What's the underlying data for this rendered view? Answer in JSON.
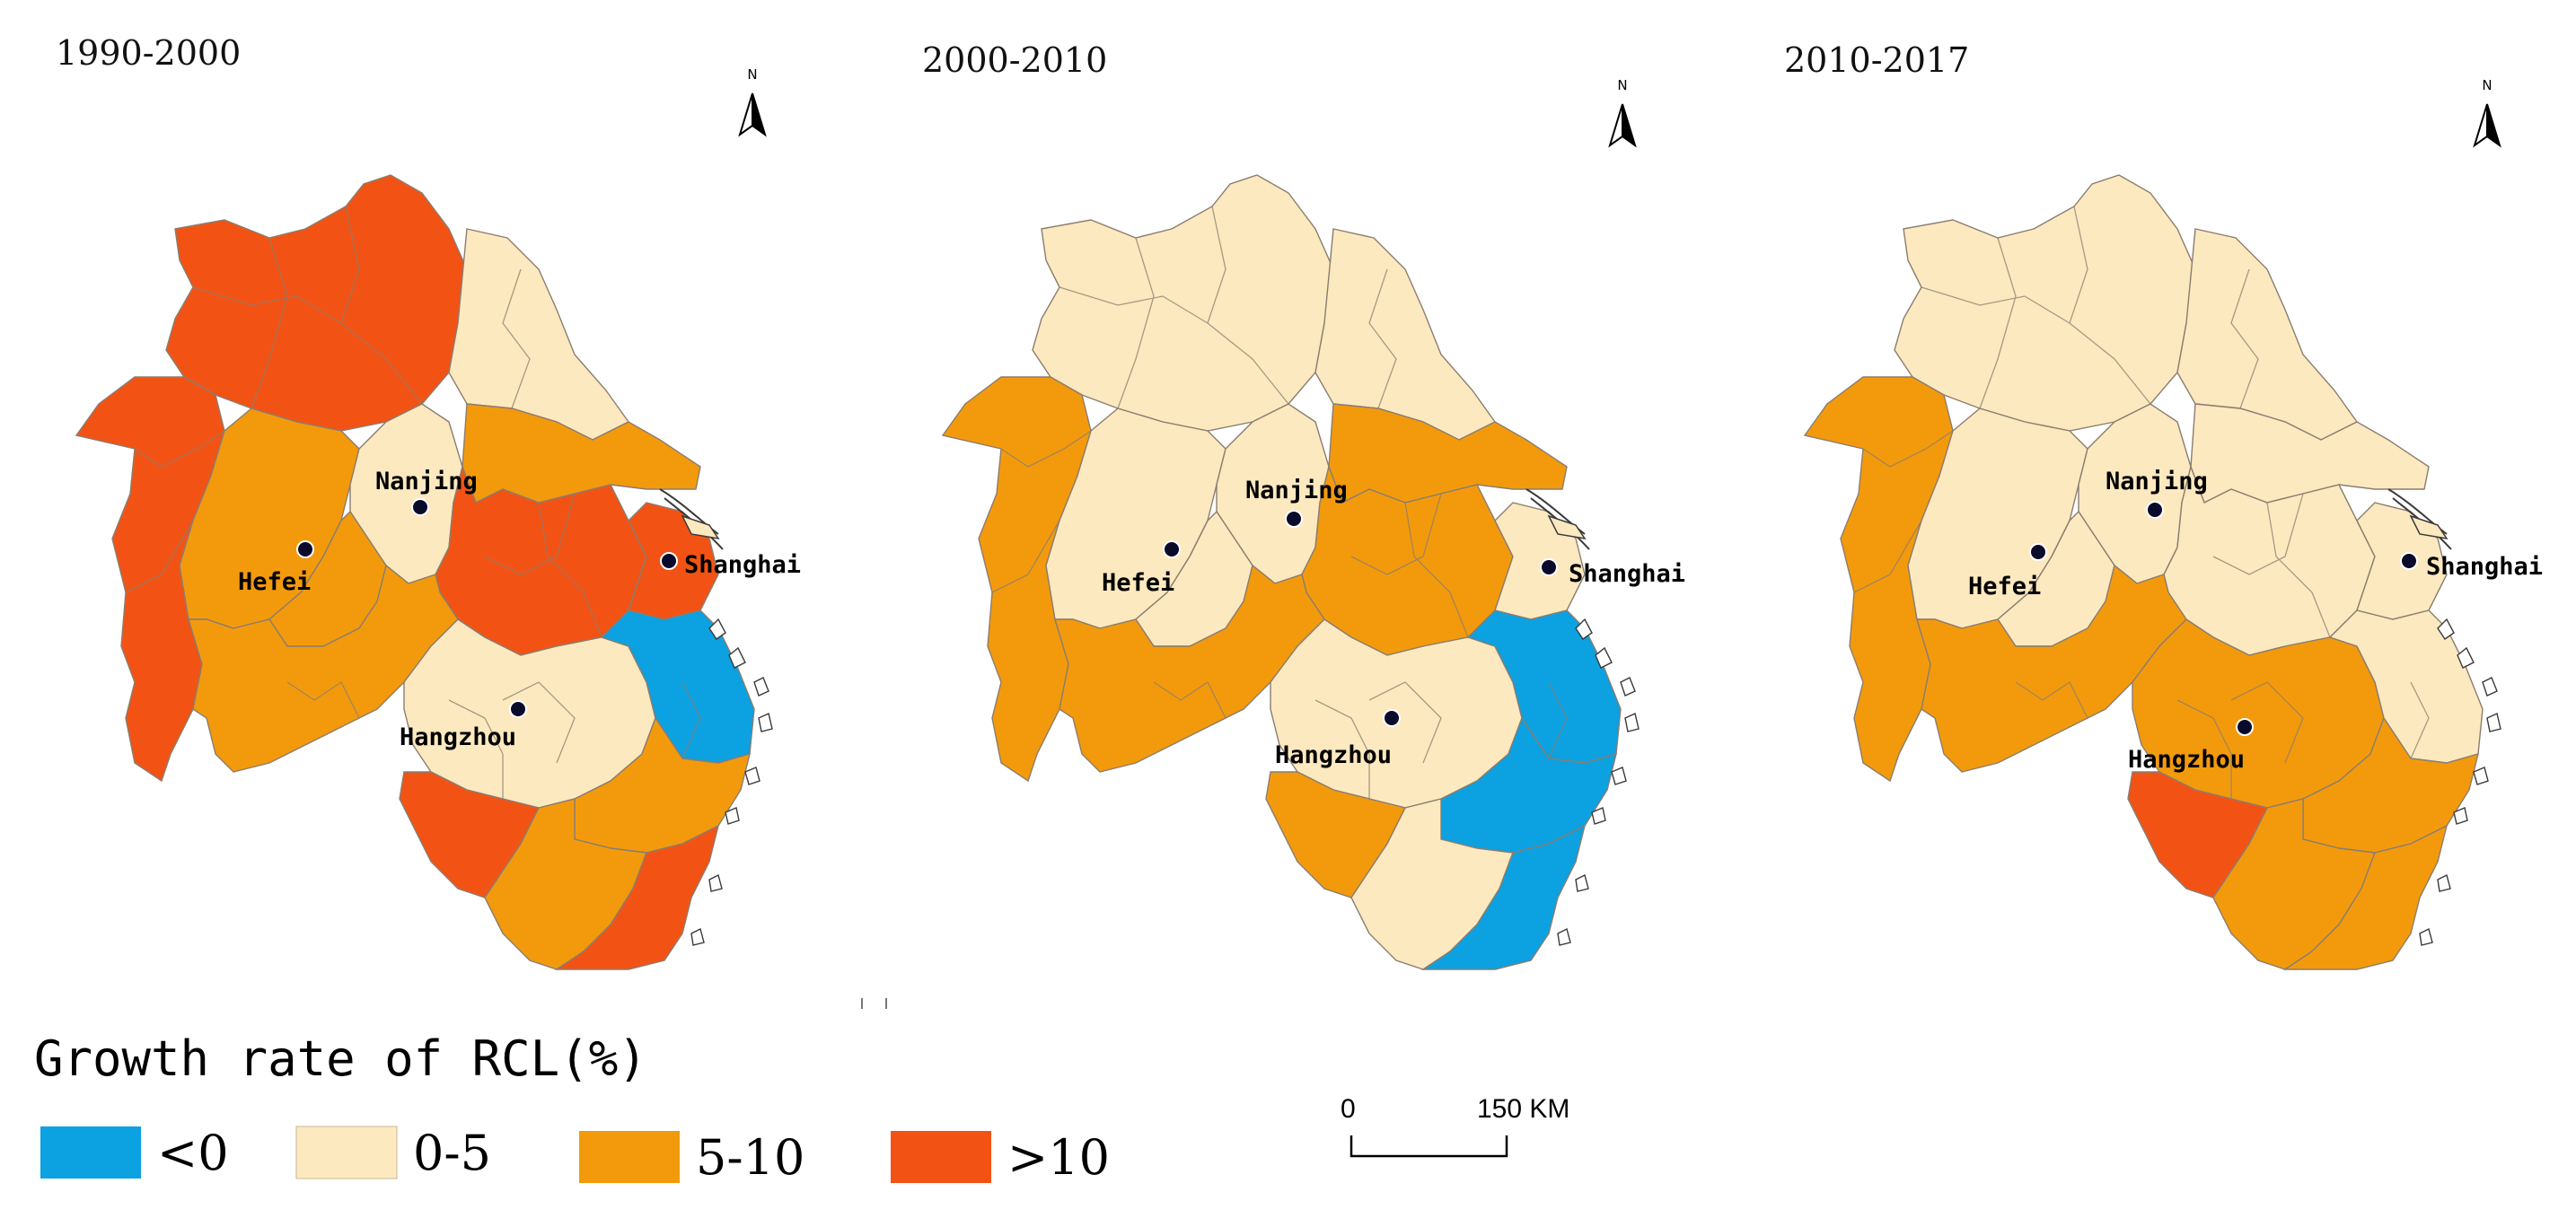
{
  "panels": [
    {
      "title": "1990-2000",
      "north_label": "N",
      "cities": [
        {
          "name": "Nanjing"
        },
        {
          "name": "Hefei"
        },
        {
          "name": "Shanghai"
        },
        {
          "name": "Hangzhou"
        }
      ],
      "region_classes": {
        "north": "gt10",
        "northeast": "c0_5",
        "west": "gt10",
        "central": "c5_10",
        "jiangsu_south": "c5_10",
        "nanjing": "c0_5",
        "hefei": "c5_10",
        "yangtze_east": "gt10",
        "shanghai": "gt10",
        "south_anhui": "c5_10",
        "hangzhou": "c0_5",
        "ningbo": "lt0",
        "jinhua": "c5_10",
        "quzhou": "gt10",
        "lishui": "c5_10",
        "wenzhou": "gt10"
      }
    },
    {
      "title": "2000-2010",
      "north_label": "N",
      "cities": [
        {
          "name": "Nanjing"
        },
        {
          "name": "Hefei"
        },
        {
          "name": "Shanghai"
        },
        {
          "name": "Hangzhou"
        }
      ],
      "region_classes": {
        "north": "c0_5",
        "northeast": "c0_5",
        "west": "c5_10",
        "central": "c0_5",
        "jiangsu_south": "c5_10",
        "nanjing": "c0_5",
        "hefei": "c0_5",
        "yangtze_east": "c5_10",
        "shanghai": "c0_5",
        "south_anhui": "c5_10",
        "hangzhou": "c0_5",
        "ningbo": "lt0",
        "jinhua": "lt0",
        "quzhou": "c5_10",
        "lishui": "c0_5",
        "wenzhou": "lt0"
      }
    },
    {
      "title": "2010-2017",
      "north_label": "N",
      "cities": [
        {
          "name": "Nanjing"
        },
        {
          "name": "Hefei"
        },
        {
          "name": "Shanghai"
        },
        {
          "name": "Hangzhou"
        }
      ],
      "region_classes": {
        "north": "c0_5",
        "northeast": "c0_5",
        "west": "c5_10",
        "central": "c0_5",
        "jiangsu_south": "c0_5",
        "nanjing": "c0_5",
        "hefei": "c0_5",
        "yangtze_east": "c0_5",
        "shanghai": "c0_5",
        "south_anhui": "c5_10",
        "hangzhou": "c5_10",
        "ningbo": "c0_5",
        "jinhua": "c5_10",
        "quzhou": "gt10",
        "lishui": "c5_10",
        "wenzhou": "c5_10"
      }
    }
  ],
  "legend": {
    "title": "Growth rate of RCL(%)",
    "items": [
      {
        "key": "lt0",
        "label": "<0",
        "color": "#0ca1e0"
      },
      {
        "key": "c0_5",
        "label": "0-5",
        "color": "#fde9bf"
      },
      {
        "key": "c5_10",
        "label": "5-10",
        "color": "#f39a0c"
      },
      {
        "key": "gt10",
        "label": ">10",
        "color": "#f25314"
      }
    ]
  },
  "scale_bar": {
    "start_label": "0",
    "end_label": "150 KM"
  },
  "colors": {
    "city_marker": "#0a0a2a",
    "boundary": "#8a7d70",
    "background": "#ffffff"
  }
}
